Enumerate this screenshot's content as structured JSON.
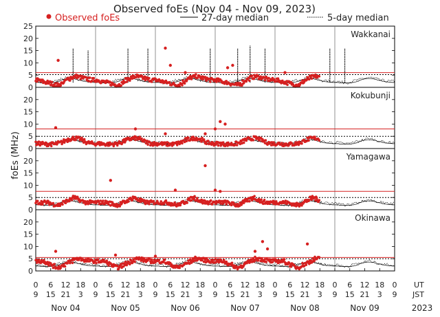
{
  "chart_data": {
    "type": "scatter",
    "title": "Observed foEs (Nov 04 - Nov 09, 2023)",
    "ylabel": "foEs (MHz)",
    "ylim": [
      0,
      25
    ],
    "yticks": [
      0,
      5,
      10,
      15,
      20,
      25
    ],
    "panel_yticks": [
      0,
      5,
      10,
      15,
      20
    ],
    "grid": false,
    "legend_position": "top",
    "legend": [
      {
        "label": "Observed foEs",
        "style": "red-dot"
      },
      {
        "label": "27-day median",
        "style": "solid-line"
      },
      {
        "label": "5-day median",
        "style": "dotted-line"
      }
    ],
    "stations": [
      "Wakkanai",
      "Kokubunji",
      "Yamagawa",
      "Okinawa"
    ],
    "threshold_lines": [
      {
        "station": "Wakkanai",
        "red": 6,
        "black": 5.2
      },
      {
        "station": "Kokubunji",
        "red": 8,
        "black": 5
      },
      {
        "station": "Yamagawa",
        "red": 7.5,
        "black": 5
      },
      {
        "station": "Okinawa",
        "red": 5.5,
        "black": 5
      }
    ],
    "x_days": [
      "Nov 04",
      "Nov 05",
      "Nov 06",
      "Nov 07",
      "Nov 08",
      "Nov 09"
    ],
    "ut_ticks": [
      "0",
      "6",
      "12",
      "18",
      "0",
      "6",
      "12",
      "18",
      "0",
      "6",
      "12",
      "18",
      "0",
      "6",
      "12",
      "18",
      "0",
      "6",
      "12",
      "18",
      "0",
      "6",
      "12",
      "18",
      "0"
    ],
    "jst_ticks": [
      "9",
      "15",
      "21",
      "3",
      "9",
      "15",
      "21",
      "3",
      "9",
      "15",
      "21",
      "3",
      "9",
      "15",
      "21",
      "3",
      "9",
      "15",
      "21",
      "3",
      "9",
      "15",
      "21",
      "3",
      "9"
    ],
    "ut_label": "UT",
    "jst_label": "JST",
    "year_label": "2023",
    "observed_end_hour": 114,
    "series": [
      {
        "name": "Observed foEs",
        "station": "Wakkanai",
        "daily_profile": [
          3,
          2.8,
          2.5,
          2.2,
          2,
          1.8,
          1.5,
          1.2,
          1,
          1,
          1.5,
          2.2,
          3,
          3.5,
          4,
          4.2,
          4.5,
          4.2,
          4,
          3.8,
          3.5,
          3.2,
          3,
          3
        ],
        "peaks_hour_value": [
          [
            9,
            11
          ],
          [
            52,
            16
          ],
          [
            54,
            9
          ],
          [
            60,
            6
          ],
          [
            77,
            8
          ],
          [
            79,
            9
          ],
          [
            100,
            6
          ]
        ]
      },
      {
        "name": "Observed foEs",
        "station": "Kokubunji",
        "daily_profile": [
          2,
          2,
          2,
          1.8,
          1.8,
          1.8,
          1.8,
          1.8,
          2,
          2.2,
          2.5,
          3,
          3.5,
          3.8,
          4,
          4.2,
          4.2,
          4,
          3.6,
          3,
          2.6,
          2.3,
          2.1,
          2
        ],
        "peaks_hour_value": [
          [
            8,
            8.5
          ],
          [
            40,
            8
          ],
          [
            52,
            6
          ],
          [
            68,
            6
          ],
          [
            72,
            8
          ],
          [
            74,
            11
          ],
          [
            76,
            10
          ]
        ]
      },
      {
        "name": "Observed foEs",
        "station": "Yamagawa",
        "daily_profile": [
          3,
          3,
          3,
          3,
          3,
          2.8,
          2.5,
          2.2,
          2,
          2,
          2.5,
          3,
          3.5,
          4,
          4.5,
          5,
          4.5,
          4,
          3.5,
          3.2,
          3,
          3,
          3,
          3
        ],
        "peaks_hour_value": [
          [
            30,
            12
          ],
          [
            56,
            8
          ],
          [
            68,
            18
          ],
          [
            72,
            8
          ],
          [
            74,
            7.5
          ]
        ]
      },
      {
        "name": "Observed foEs",
        "station": "Okinawa",
        "daily_profile": [
          4,
          4,
          4,
          4,
          3.5,
          3,
          2.5,
          2,
          1.5,
          1.5,
          2,
          2.5,
          3,
          3.5,
          4,
          4.5,
          5,
          5,
          4.8,
          4.5,
          4.3,
          4.2,
          4,
          4
        ],
        "peaks_hour_value": [
          [
            8,
            8
          ],
          [
            32,
            6.5
          ],
          [
            48,
            6
          ],
          [
            88,
            8
          ],
          [
            91,
            12
          ],
          [
            93,
            9
          ],
          [
            109,
            11
          ]
        ]
      },
      {
        "name": "27-day median",
        "daily_profile": [
          2,
          2,
          1.8,
          1.8,
          1.8,
          1.8,
          1.8,
          2,
          2.2,
          2.5,
          3,
          3.3,
          3.5,
          3.6,
          3.6,
          3.5,
          3.3,
          3,
          2.8,
          2.5,
          2.3,
          2.2,
          2.1,
          2
        ]
      },
      {
        "name": "5-day median",
        "daily_profile": [
          2.5,
          2.5,
          2.2,
          2,
          2,
          2,
          2.2,
          2.5,
          2.8,
          3,
          3.2,
          3.5,
          3.8,
          4,
          4,
          3.8,
          3.5,
          3.2,
          3,
          2.8,
          2.6,
          2.5,
          2.5,
          2.5
        ],
        "spikes_hour_value": [
          [
            15,
            16
          ],
          [
            21,
            15
          ],
          [
            37,
            16
          ],
          [
            45,
            16
          ],
          [
            70,
            16
          ],
          [
            81,
            16
          ],
          [
            86,
            17
          ],
          [
            92,
            16
          ],
          [
            118,
            16
          ],
          [
            124,
            16
          ]
        ]
      }
    ]
  }
}
